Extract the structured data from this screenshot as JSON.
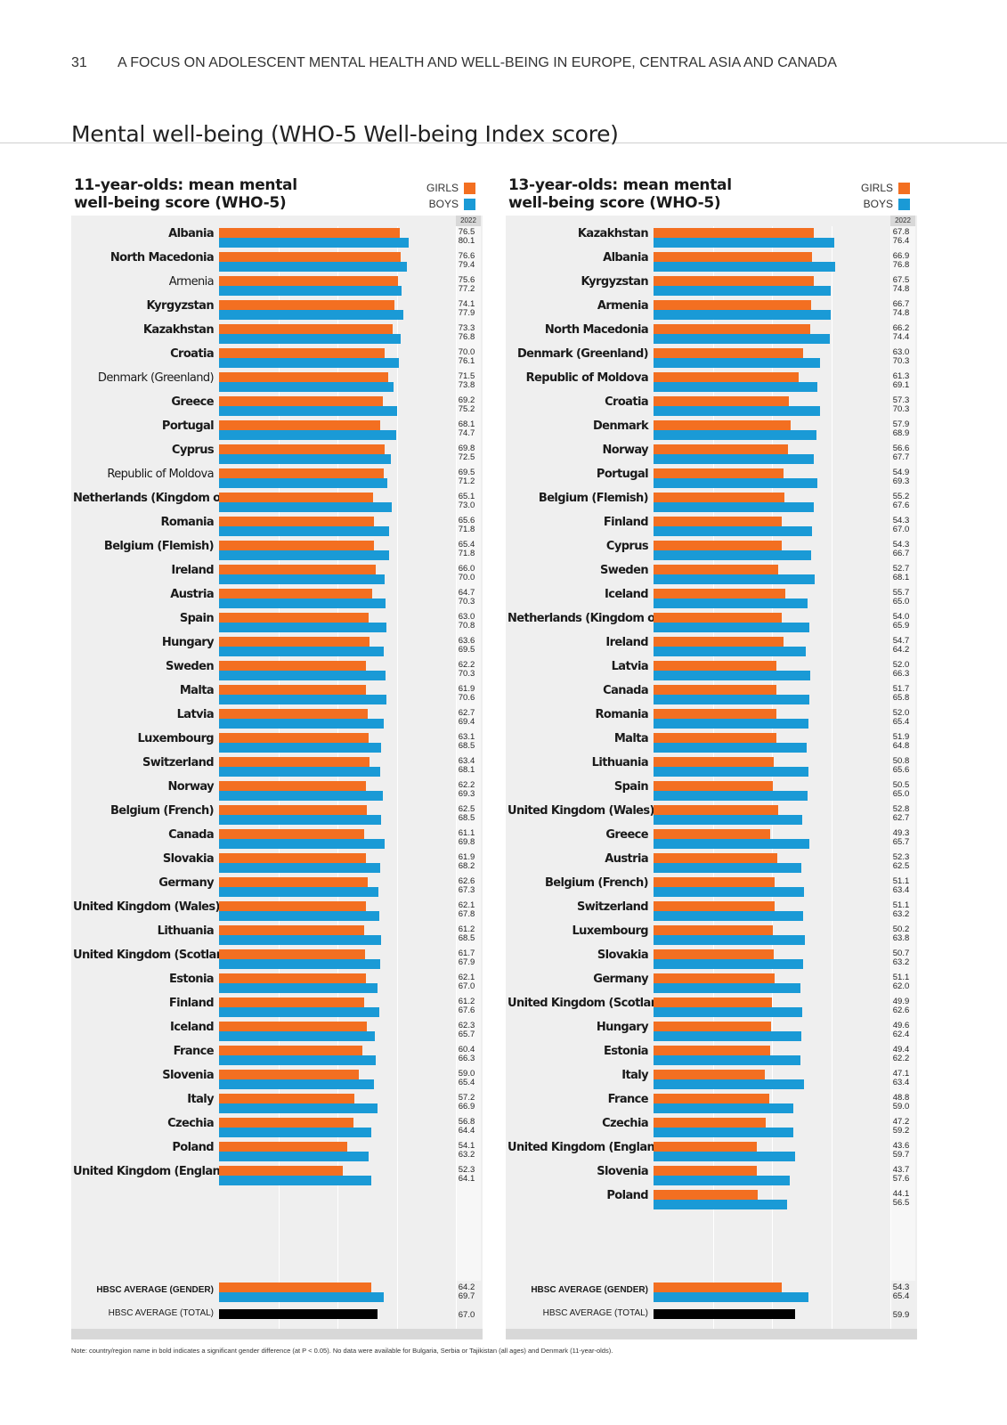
{
  "header": {
    "page_number": "31",
    "running_title": "A FOCUS ON ADOLESCENT MENTAL HEALTH AND WELL-BEING IN EUROPE, CENTRAL ASIA AND CANADA"
  },
  "main_title": "Mental well-being (WHO-5 Well-being Index score)",
  "legend": {
    "girls": "GIRLS",
    "boys": "BOYS"
  },
  "note": "Note: country/region name in bold indicates a significant gender difference (at P < 0.05). No data were available for Bulgaria, Serbia or Tajikistan (all ages) and Denmark (11-year-olds).",
  "colors": {
    "girls": "#f36f21",
    "boys": "#1a9ad6",
    "total": "#000000",
    "panel_bg": "#efefef"
  },
  "chart_data": [
    {
      "type": "bar",
      "title": "11-year-olds: mean mental well-being score (WHO-5)",
      "year": "2022",
      "xlim": [
        0,
        100
      ],
      "ticks": [
        "0",
        "50",
        "100"
      ],
      "grid": true,
      "legend_position": "top-right",
      "categories": [
        "Albania",
        "North Macedonia",
        "Armenia",
        "Kyrgyzstan",
        "Kazakhstan",
        "Croatia",
        "Denmark (Greenland)",
        "Greece",
        "Portugal",
        "Cyprus",
        "Republic of Moldova",
        "Netherlands (Kingdom of the)",
        "Romania",
        "Belgium (Flemish)",
        "Ireland",
        "Austria",
        "Spain",
        "Hungary",
        "Sweden",
        "Malta",
        "Latvia",
        "Luxembourg",
        "Switzerland",
        "Norway",
        "Belgium (French)",
        "Canada",
        "Slovakia",
        "Germany",
        "United Kingdom (Wales)",
        "Lithuania",
        "United Kingdom (Scotland)",
        "Estonia",
        "Finland",
        "Iceland",
        "France",
        "Slovenia",
        "Italy",
        "Czechia",
        "Poland",
        "United Kingdom (England)"
      ],
      "significant": [
        true,
        true,
        false,
        true,
        true,
        true,
        false,
        true,
        true,
        true,
        false,
        true,
        true,
        true,
        true,
        true,
        true,
        true,
        true,
        true,
        true,
        true,
        true,
        true,
        true,
        true,
        true,
        true,
        true,
        true,
        true,
        true,
        true,
        true,
        true,
        true,
        true,
        true,
        true,
        true
      ],
      "series": [
        {
          "name": "GIRLS",
          "values": [
            76.5,
            76.6,
            75.6,
            74.1,
            73.3,
            70.0,
            71.5,
            69.2,
            68.1,
            69.8,
            69.5,
            65.1,
            65.6,
            65.4,
            66.0,
            64.7,
            63.0,
            63.6,
            62.2,
            61.9,
            62.7,
            63.1,
            63.4,
            62.2,
            62.5,
            61.1,
            61.9,
            62.6,
            62.1,
            61.2,
            61.7,
            62.1,
            61.2,
            62.3,
            60.4,
            59.0,
            57.2,
            56.8,
            54.1,
            52.3
          ]
        },
        {
          "name": "BOYS",
          "values": [
            80.1,
            79.4,
            77.2,
            77.9,
            76.8,
            76.1,
            73.8,
            75.2,
            74.7,
            72.5,
            71.2,
            73.0,
            71.8,
            71.8,
            70.0,
            70.3,
            70.8,
            69.5,
            70.3,
            70.6,
            69.4,
            68.5,
            68.1,
            69.3,
            68.5,
            69.8,
            68.2,
            67.3,
            67.8,
            68.5,
            67.9,
            67.0,
            67.6,
            65.7,
            66.3,
            65.4,
            66.9,
            64.4,
            63.2,
            64.1
          ]
        }
      ],
      "averages": {
        "gender_label": "HBSC AVERAGE (GENDER)",
        "total_label": "HBSC AVERAGE (TOTAL)",
        "girls": 64.2,
        "boys": 69.7,
        "total": 67.0
      }
    },
    {
      "type": "bar",
      "title": "13-year-olds: mean mental well-being score (WHO-5)",
      "year": "2022",
      "xlim": [
        0,
        100
      ],
      "ticks": [
        "0",
        "50",
        "100"
      ],
      "grid": true,
      "legend_position": "top-right",
      "categories": [
        "Kazakhstan",
        "Albania",
        "Kyrgyzstan",
        "Armenia",
        "North Macedonia",
        "Denmark (Greenland)",
        "Republic of Moldova",
        "Croatia",
        "Denmark",
        "Norway",
        "Portugal",
        "Belgium (Flemish)",
        "Finland",
        "Cyprus",
        "Sweden",
        "Iceland",
        "Netherlands (Kingdom of the)",
        "Ireland",
        "Latvia",
        "Canada",
        "Romania",
        "Malta",
        "Lithuania",
        "Spain",
        "United Kingdom (Wales)",
        "Greece",
        "Austria",
        "Belgium (French)",
        "Switzerland",
        "Luxembourg",
        "Slovakia",
        "Germany",
        "United Kingdom (Scotland)",
        "Hungary",
        "Estonia",
        "Italy",
        "France",
        "Czechia",
        "United Kingdom (England)",
        "Slovenia",
        "Poland"
      ],
      "significant": [
        true,
        true,
        true,
        true,
        true,
        true,
        true,
        true,
        true,
        true,
        true,
        true,
        true,
        true,
        true,
        true,
        true,
        true,
        true,
        true,
        true,
        true,
        true,
        true,
        true,
        true,
        true,
        true,
        true,
        true,
        true,
        true,
        true,
        true,
        true,
        true,
        true,
        true,
        true,
        true,
        true
      ],
      "series": [
        {
          "name": "GIRLS",
          "values": [
            67.8,
            66.9,
            67.5,
            66.7,
            66.2,
            63.0,
            61.3,
            57.3,
            57.9,
            56.6,
            54.9,
            55.2,
            54.3,
            54.3,
            52.7,
            55.7,
            54.0,
            54.7,
            52.0,
            51.7,
            52.0,
            51.9,
            50.8,
            50.5,
            52.8,
            49.3,
            52.3,
            51.1,
            51.1,
            50.2,
            50.7,
            51.1,
            49.9,
            49.6,
            49.4,
            47.1,
            48.8,
            47.2,
            43.6,
            43.7,
            44.1
          ]
        },
        {
          "name": "BOYS",
          "values": [
            76.4,
            76.8,
            74.8,
            74.8,
            74.4,
            70.3,
            69.1,
            70.3,
            68.9,
            67.7,
            69.3,
            67.6,
            67.0,
            66.7,
            68.1,
            65.0,
            65.9,
            64.2,
            66.3,
            65.8,
            65.4,
            64.8,
            65.6,
            65.0,
            62.7,
            65.7,
            62.5,
            63.4,
            63.2,
            63.8,
            63.2,
            62.0,
            62.6,
            62.4,
            62.2,
            63.4,
            59.0,
            59.2,
            59.7,
            57.6,
            56.5
          ]
        }
      ],
      "averages": {
        "gender_label": "HBSC AVERAGE (GENDER)",
        "total_label": "HBSC AVERAGE (TOTAL)",
        "girls": 54.3,
        "boys": 65.4,
        "total": 59.9
      }
    }
  ]
}
